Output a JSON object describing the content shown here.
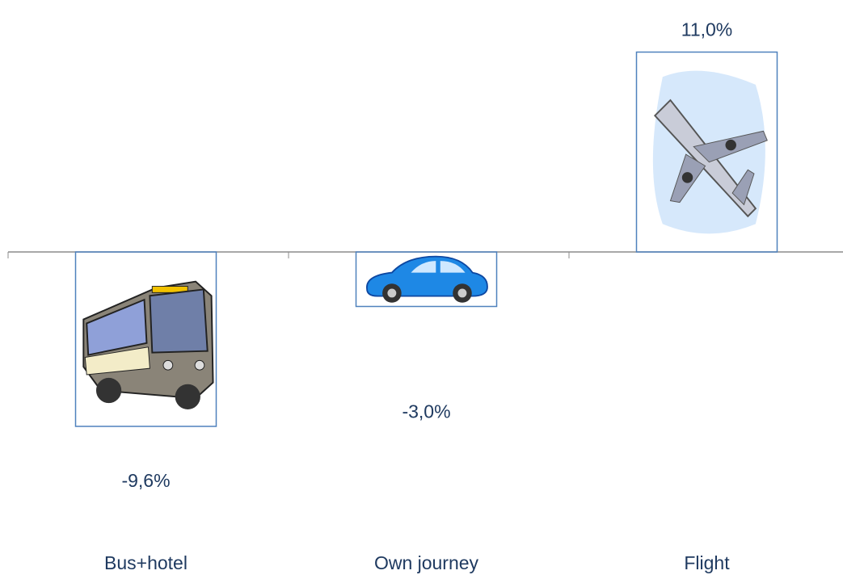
{
  "chart_data": {
    "type": "bar",
    "categories": [
      "Bus+hotel",
      "Own journey",
      "Flight"
    ],
    "values": [
      -9.6,
      -3.0,
      11.0
    ],
    "value_labels": [
      "-9,6%",
      "-3,0%",
      "11,0%"
    ],
    "color": "#4f81bd"
  }
}
